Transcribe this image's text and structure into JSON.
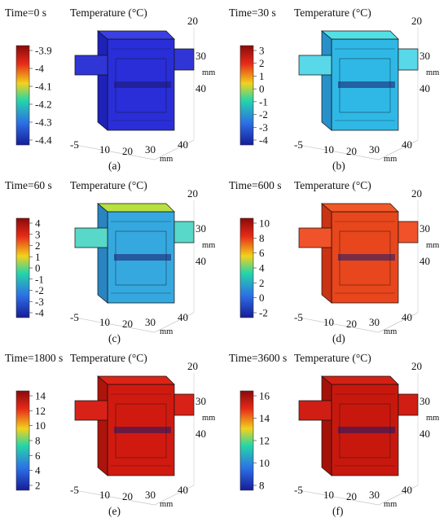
{
  "panels": [
    {
      "id": "a",
      "time": "Time=0 s",
      "title": "Temperature (°C)",
      "ticks": [
        "-3.9",
        "-4",
        "-4.1",
        "-4.2",
        "-4.3",
        "-4.4"
      ],
      "caption": "(a)",
      "axis_x": [
        "-5",
        "10",
        "20",
        "30",
        "40"
      ],
      "axis_y": [
        "20",
        "30",
        "40"
      ],
      "unit": "mm",
      "colors": {
        "body": "#2a2ed8",
        "top": "#3a40e4",
        "side": "#1e22b8",
        "wing": "#3036d6"
      }
    },
    {
      "id": "b",
      "time": "Time=30 s",
      "title": "Temperature (°C)",
      "ticks": [
        "3",
        "2",
        "1",
        "0",
        "-1",
        "-2",
        "-3",
        "-4"
      ],
      "caption": "(b)",
      "axis_x": [
        "-5",
        "10",
        "20",
        "30",
        "40"
      ],
      "axis_y": [
        "20",
        "30",
        "40"
      ],
      "unit": "mm",
      "colors": {
        "body": "#2fb8e6",
        "top": "#52e0e6",
        "side": "#2790c8",
        "wing": "#58d8e8"
      }
    },
    {
      "id": "c",
      "time": "Time=60 s",
      "title": "Temperature (°C)",
      "ticks": [
        "4",
        "3",
        "2",
        "1",
        "0",
        "-1",
        "-2",
        "-3",
        "-4"
      ],
      "caption": "(c)",
      "axis_x": [
        "-5",
        "10",
        "20",
        "30",
        "40"
      ],
      "axis_y": [
        "20",
        "30",
        "40"
      ],
      "unit": "mm",
      "colors": {
        "body": "#36a8e0",
        "top": "#b8e040",
        "side": "#2a84c0",
        "wing": "#58d8c8"
      }
    },
    {
      "id": "d",
      "time": "Time=600 s",
      "title": "Temperature (°C)",
      "ticks": [
        "10",
        "8",
        "6",
        "4",
        "2",
        "0",
        "-2"
      ],
      "caption": "(d)",
      "axis_x": [
        "-5",
        "10",
        "20",
        "30",
        "40"
      ],
      "axis_y": [
        "20",
        "30",
        "40"
      ],
      "unit": "mm",
      "colors": {
        "body": "#e8461c",
        "top": "#f05828",
        "side": "#c83414",
        "wing": "#f0522a"
      }
    },
    {
      "id": "e",
      "time": "Time=1800 s",
      "title": "Temperature (°C)",
      "ticks": [
        "14",
        "12",
        "10",
        "8",
        "6",
        "4",
        "2"
      ],
      "caption": "(e)",
      "axis_x": [
        "-5",
        "10",
        "20",
        "30",
        "40"
      ],
      "axis_y": [
        "20",
        "30",
        "40"
      ],
      "unit": "mm",
      "colors": {
        "body": "#d01a10",
        "top": "#dc2416",
        "side": "#ac140c",
        "wing": "#d82218"
      }
    },
    {
      "id": "f",
      "time": "Time=3600 s",
      "title": "Temperature (°C)",
      "ticks": [
        "16",
        "14",
        "12",
        "10",
        "8"
      ],
      "caption": "(f)",
      "axis_x": [
        "-5",
        "10",
        "20",
        "30",
        "40"
      ],
      "axis_y": [
        "20",
        "30",
        "40"
      ],
      "unit": "mm",
      "colors": {
        "body": "#c8180e",
        "top": "#d42014",
        "side": "#a4120a",
        "wing": "#d01e14"
      }
    }
  ]
}
